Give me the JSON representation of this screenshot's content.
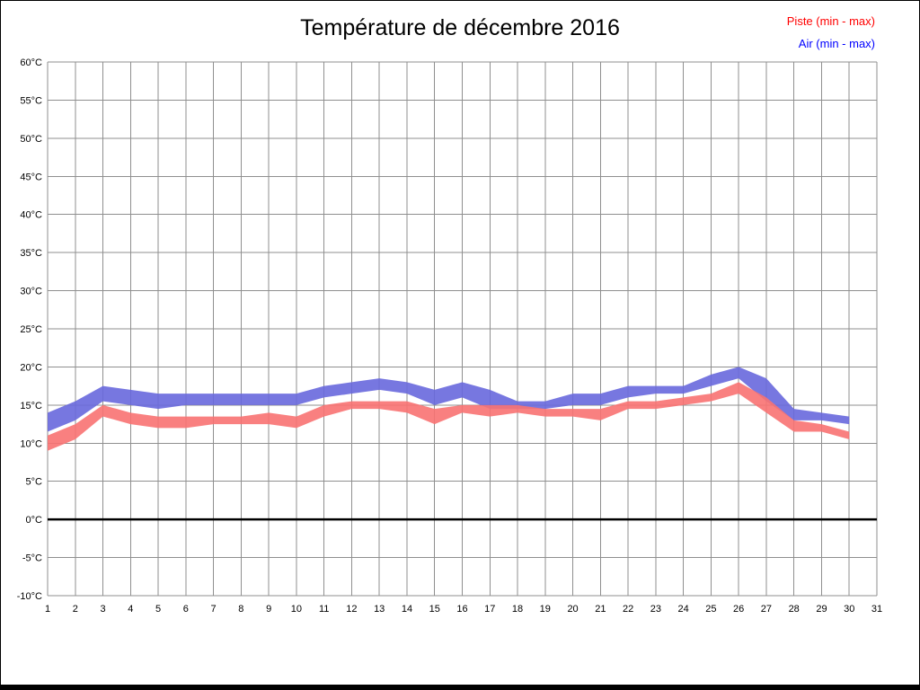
{
  "chart_data": {
    "type": "area",
    "title": "Température de décembre 2016",
    "xlabel": "",
    "ylabel": "",
    "x": [
      1,
      2,
      3,
      4,
      5,
      6,
      7,
      8,
      9,
      10,
      11,
      12,
      13,
      14,
      15,
      16,
      17,
      18,
      19,
      20,
      21,
      22,
      23,
      24,
      25,
      26,
      27,
      28,
      29,
      30
    ],
    "x_ticks": [
      1,
      2,
      3,
      4,
      5,
      6,
      7,
      8,
      9,
      10,
      11,
      12,
      13,
      14,
      15,
      16,
      17,
      18,
      19,
      20,
      21,
      22,
      23,
      24,
      25,
      26,
      27,
      28,
      29,
      30,
      31
    ],
    "ylim": [
      -10,
      60
    ],
    "ytick_step": 5,
    "ytick_suffix": "°C",
    "grid": true,
    "zero_line": true,
    "zero_line_color": "#000000",
    "legend_position": "top-right",
    "series": [
      {
        "name": "Piste (min - max)",
        "legend_color": "#ff0000",
        "band_color": "#f87272",
        "min": [
          9,
          10.5,
          13.5,
          12.5,
          12,
          12,
          12.5,
          12.5,
          12.5,
          12,
          13.5,
          14.5,
          14.5,
          14,
          12.5,
          14,
          13.5,
          14,
          13.5,
          13.5,
          13,
          14.5,
          14.5,
          15,
          15.5,
          16.5,
          14,
          11.5,
          11.5,
          10.5
        ],
        "max": [
          11,
          12.5,
          15,
          14,
          13.5,
          13.5,
          13.5,
          13.5,
          14,
          13.5,
          15,
          15.5,
          15.5,
          15.5,
          14.5,
          15,
          15,
          15,
          14.5,
          14.5,
          14.5,
          15.5,
          15.5,
          16,
          16.5,
          18,
          16,
          13,
          12.5,
          11.5
        ]
      },
      {
        "name": "Air (min - max)",
        "legend_color": "#0000ff",
        "band_color": "#6868dd",
        "min": [
          11.5,
          13,
          15.5,
          15,
          14.5,
          15,
          15,
          15,
          15,
          15,
          16,
          16.5,
          17,
          16.5,
          15,
          16,
          14.5,
          14.5,
          14.5,
          15,
          15,
          16,
          16.5,
          16.5,
          17.5,
          18.5,
          15.5,
          13,
          13,
          12.5
        ],
        "max": [
          14,
          15.5,
          17.5,
          17,
          16.5,
          16.5,
          16.5,
          16.5,
          16.5,
          16.5,
          17.5,
          18,
          18.5,
          18,
          17,
          18,
          17,
          15.5,
          15.5,
          16.5,
          16.5,
          17.5,
          17.5,
          17.5,
          19,
          20,
          18.5,
          14.5,
          14,
          13.5
        ]
      }
    ]
  }
}
